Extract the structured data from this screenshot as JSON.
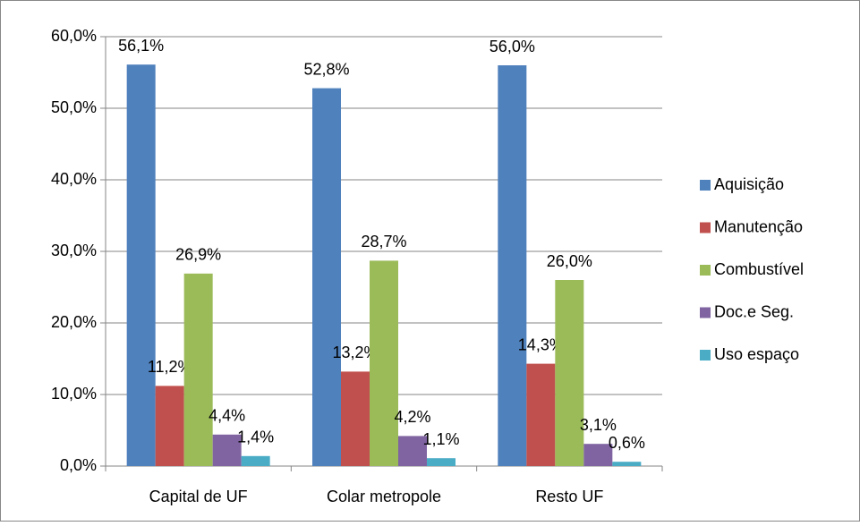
{
  "chart_data": {
    "type": "grouped_bar",
    "categories": [
      "Capital de UF",
      "Colar metropole",
      "Resto UF"
    ],
    "series": [
      {
        "name": "Aquisição",
        "color": "#4f81bd",
        "values": [
          56.1,
          52.8,
          56.0
        ],
        "value_labels": [
          "56,1%",
          "52,8%",
          "56,0%"
        ]
      },
      {
        "name": "Manutenção",
        "color": "#c0504d",
        "values": [
          11.2,
          13.2,
          14.3
        ],
        "value_labels": [
          "11,2%",
          "13,2%",
          "14,3%"
        ]
      },
      {
        "name": "Combustível",
        "color": "#9bbb59",
        "values": [
          26.9,
          28.7,
          26.0
        ],
        "value_labels": [
          "26,9%",
          "28,7%",
          "26,0%"
        ]
      },
      {
        "name": "Doc.e Seg.",
        "color": "#8064a2",
        "values": [
          4.4,
          4.2,
          3.1
        ],
        "value_labels": [
          "4,4%",
          "4,2%",
          "3,1%"
        ]
      },
      {
        "name": "Uso espaço",
        "color": "#4bacc6",
        "values": [
          1.4,
          1.1,
          0.6
        ],
        "value_labels": [
          "1,4%",
          "1,1%",
          "0,6%"
        ]
      }
    ],
    "ylim": [
      0,
      60
    ],
    "yticks": [
      {
        "value": 0,
        "label": "0,0%"
      },
      {
        "value": 10,
        "label": "10,0%"
      },
      {
        "value": 20,
        "label": "20,0%"
      },
      {
        "value": 30,
        "label": "30,0%"
      },
      {
        "value": 40,
        "label": "40,0%"
      },
      {
        "value": 50,
        "label": "50,0%"
      },
      {
        "value": 60,
        "label": "60,0%"
      }
    ],
    "grid": true,
    "legend": "right"
  }
}
